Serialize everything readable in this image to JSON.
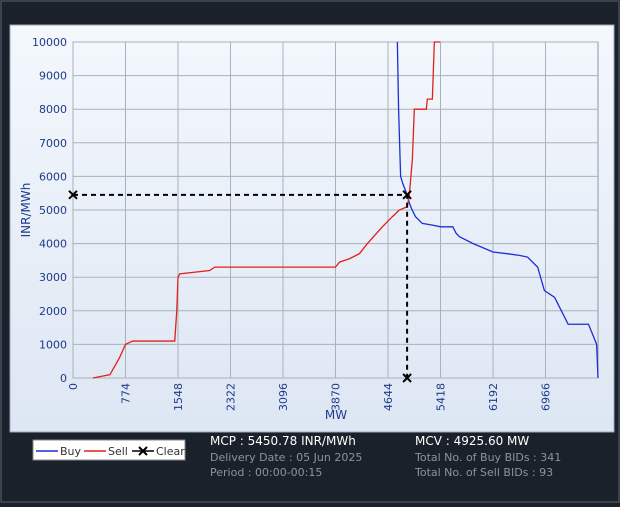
{
  "chart_data": {
    "type": "line",
    "xlabel": "MW",
    "ylabel": "INR/MWh",
    "xlim": [
      0,
      7740
    ],
    "xticks": [
      0,
      774,
      1548,
      2322,
      3096,
      3870,
      4644,
      5418,
      6192,
      6966
    ],
    "ylim": [
      0,
      10000
    ],
    "yticks": [
      0,
      1000,
      2000,
      3000,
      4000,
      5000,
      6000,
      7000,
      8000,
      9000,
      10000
    ],
    "grid": true,
    "series": [
      {
        "name": "Buy",
        "color": "#1c2fd6",
        "x": [
          4782,
          4800,
          4830,
          4860,
          4925.6,
          4960,
          5000,
          5050,
          5150,
          5300,
          5418,
          5600,
          5650,
          5700,
          5900,
          6192,
          6400,
          6580,
          6700,
          6850,
          6950,
          7100,
          7200,
          7300,
          7600,
          7700,
          7720,
          7740
        ],
        "values": [
          10000,
          8000,
          6000,
          5800,
          5450.78,
          5200,
          5000,
          4800,
          4600,
          4550,
          4500,
          4500,
          4300,
          4200,
          4000,
          3750,
          3700,
          3650,
          3600,
          3300,
          2600,
          2400,
          2000,
          1600,
          1600,
          1100,
          1000,
          0
        ]
      },
      {
        "name": "Sell",
        "color": "#e0201c",
        "x": [
          294,
          544,
          685,
          774,
          880,
          1500,
          1530,
          1548,
          1575,
          2016,
          2090,
          3870,
          3929,
          4076,
          4223,
          4340,
          4561,
          4708,
          4811,
          4929,
          4958,
          5003,
          5032,
          5209,
          5224,
          5298,
          5327,
          5415
        ],
        "values": [
          0,
          100,
          600,
          1000,
          1100,
          1100,
          2000,
          3000,
          3100,
          3200,
          3300,
          3300,
          3450,
          3550,
          3700,
          4000,
          4500,
          4800,
          5000,
          5100,
          5450,
          6500,
          8000,
          8000,
          8300,
          8300,
          10000,
          10000
        ]
      },
      {
        "name": "Clear",
        "color": "#000000",
        "x": [
          0,
          4925.6,
          4925.6
        ],
        "values": [
          5450.78,
          5450.78,
          0
        ]
      }
    ],
    "info": [
      "MCP : 5450.78 INR/MWh",
      "Delivery Date : 05 Jun 2025",
      "Period :  00:00-00:15",
      "MCV : 4925.60 MW",
      "Total No. of Buy BIDs : 341",
      "Total No. of Sell BIDs : 93"
    ]
  }
}
